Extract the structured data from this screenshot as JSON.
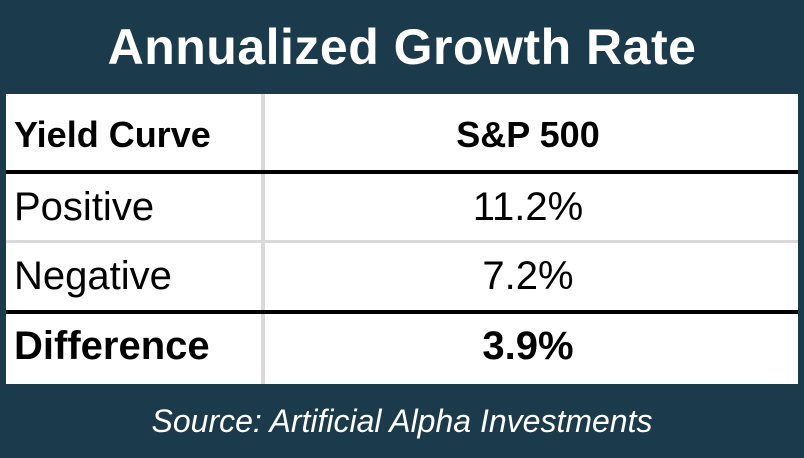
{
  "chart_data": {
    "type": "table",
    "title": "Annualized Growth Rate",
    "columns": [
      "Yield Curve",
      "S&P 500"
    ],
    "rows": [
      {
        "label": "Positive",
        "value": "11.2%"
      },
      {
        "label": "Negative",
        "value": "7.2%"
      }
    ],
    "total": {
      "label": "Difference",
      "value": "3.9%"
    },
    "source": "Source: Artificial Alpha Investments"
  },
  "colors": {
    "header_background": "#1b3a4b",
    "header_text": "#ffffff",
    "table_background": "#ffffff",
    "text": "#000000",
    "grid_light": "#d9d9d9"
  }
}
